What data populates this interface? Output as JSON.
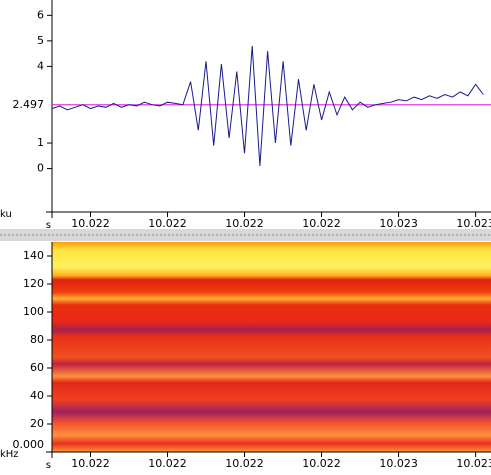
{
  "chart_data": [
    {
      "type": "line",
      "xlabel": "s",
      "ylabel": "ku",
      "xlim": [
        10.0217,
        10.02284
      ],
      "ylim": [
        -1.7,
        6.6
      ],
      "xticks": [
        {
          "value": 10.0218,
          "label": "10.022"
        },
        {
          "value": 10.022,
          "label": "10.022"
        },
        {
          "value": 10.0222,
          "label": "10.022"
        },
        {
          "value": 10.0224,
          "label": "10.022"
        },
        {
          "value": 10.0226,
          "label": "10.023"
        },
        {
          "value": 10.0228,
          "label": "10.023"
        }
      ],
      "yticks": [
        0,
        1,
        4,
        5,
        6
      ],
      "hline": 2.497,
      "hline_color": "#e020e0",
      "x": [
        10.0217,
        10.02172,
        10.02174,
        10.02176,
        10.02178,
        10.0218,
        10.02182,
        10.02184,
        10.02186,
        10.02188,
        10.0219,
        10.02192,
        10.02194,
        10.02196,
        10.02198,
        10.022,
        10.02202,
        10.02204,
        10.02206,
        10.02208,
        10.0221,
        10.02212,
        10.02214,
        10.02216,
        10.02218,
        10.0222,
        10.02222,
        10.02224,
        10.02226,
        10.02228,
        10.0223,
        10.02232,
        10.02234,
        10.02236,
        10.02238,
        10.0224,
        10.02242,
        10.02244,
        10.02246,
        10.02248,
        10.0225,
        10.02252,
        10.02254,
        10.02256,
        10.02258,
        10.0226,
        10.02262,
        10.02264,
        10.02266,
        10.02268,
        10.0227,
        10.02272,
        10.02274,
        10.02276,
        10.02278,
        10.0228,
        10.02282
      ],
      "series": [
        {
          "color": "#1a1a8c",
          "values": [
            2.35,
            2.45,
            2.3,
            2.4,
            2.5,
            2.35,
            2.45,
            2.4,
            2.55,
            2.4,
            2.5,
            2.45,
            2.6,
            2.5,
            2.45,
            2.6,
            2.55,
            2.5,
            3.4,
            1.5,
            4.2,
            0.9,
            4.1,
            1.2,
            3.8,
            0.6,
            4.8,
            0.1,
            4.6,
            1.0,
            4.2,
            0.9,
            3.5,
            1.5,
            3.3,
            1.9,
            3.0,
            2.1,
            2.8,
            2.3,
            2.6,
            2.4,
            2.5,
            2.55,
            2.6,
            2.7,
            2.65,
            2.8,
            2.7,
            2.85,
            2.75,
            2.9,
            2.8,
            3.0,
            2.85,
            3.3,
            2.9
          ]
        }
      ]
    },
    {
      "type": "spectrogram",
      "xlabel": "s",
      "ylabel": "kHz",
      "xlim": [
        10.0217,
        10.02284
      ],
      "ylim": [
        0,
        150
      ],
      "xticks": [
        {
          "value": 10.0218,
          "label": "10.022"
        },
        {
          "value": 10.022,
          "label": "10.022"
        },
        {
          "value": 10.0222,
          "label": "10.022"
        },
        {
          "value": 10.0224,
          "label": "10.022"
        },
        {
          "value": 10.0226,
          "label": "10.023"
        },
        {
          "value": 10.0228,
          "label": "10.023"
        }
      ],
      "yticks": [
        {
          "value": 0,
          "label": "0.000"
        },
        20,
        40,
        60,
        80,
        100,
        120,
        140
      ]
    }
  ]
}
